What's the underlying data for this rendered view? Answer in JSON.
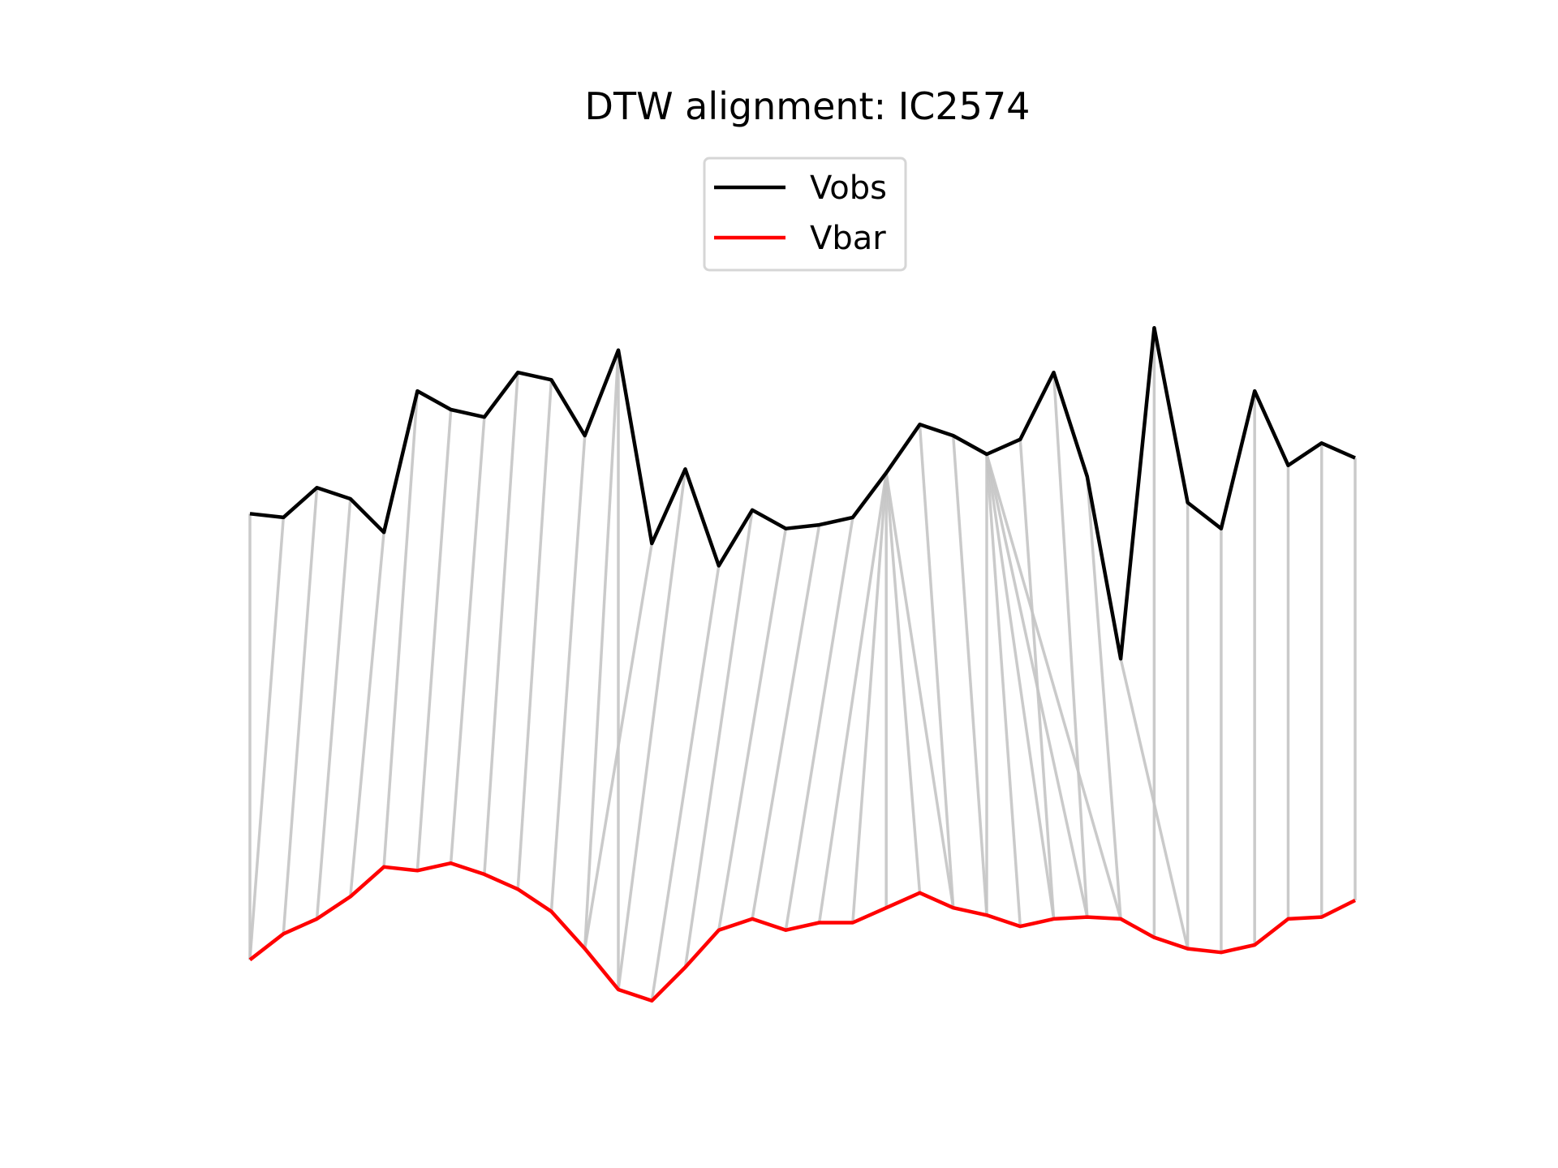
{
  "chart_data": {
    "type": "line",
    "title": "DTW alignment: IC2574",
    "xlabel": "",
    "ylabel": "",
    "grid": false,
    "axes_visible": false,
    "legend": {
      "placement": "upper-center"
    },
    "x": [
      0,
      1,
      2,
      3,
      4,
      5,
      6,
      7,
      8,
      9,
      10,
      11,
      12,
      13,
      14,
      15,
      16,
      17,
      18,
      19,
      20,
      21,
      22,
      23,
      24,
      25,
      26,
      27,
      28,
      29,
      30,
      31,
      32,
      33
    ],
    "ylim": [
      -1.1,
      1.3
    ],
    "series": [
      {
        "name": "Vobs",
        "color": "#000000",
        "values": [
          0.3,
          0.29,
          0.37,
          0.34,
          0.25,
          0.63,
          0.58,
          0.56,
          0.68,
          0.66,
          0.51,
          0.74,
          0.22,
          0.42,
          0.16,
          0.31,
          0.26,
          0.27,
          0.29,
          0.41,
          0.54,
          0.51,
          0.46,
          0.5,
          0.68,
          0.4,
          -0.09,
          0.8,
          0.33,
          0.26,
          0.63,
          0.43,
          0.49,
          0.45
        ]
      },
      {
        "name": "Vbar",
        "color": "#ff0000",
        "values": [
          -0.9,
          -0.83,
          -0.79,
          -0.73,
          -0.65,
          -0.66,
          -0.64,
          -0.67,
          -0.71,
          -0.77,
          -0.87,
          -0.98,
          -1.01,
          -0.92,
          -0.82,
          -0.79,
          -0.82,
          -0.8,
          -0.8,
          -0.76,
          -0.72,
          -0.76,
          -0.78,
          -0.81,
          -0.79,
          -0.785,
          -0.79,
          -0.84,
          -0.87,
          -0.88,
          -0.86,
          -0.79,
          -0.785,
          -0.74
        ]
      }
    ],
    "alignment_color": "#c4c4c4",
    "alignment_pairs": [
      [
        0,
        0
      ],
      [
        1,
        0
      ],
      [
        2,
        1
      ],
      [
        3,
        2
      ],
      [
        4,
        3
      ],
      [
        5,
        4
      ],
      [
        6,
        5
      ],
      [
        7,
        6
      ],
      [
        8,
        7
      ],
      [
        9,
        8
      ],
      [
        10,
        9
      ],
      [
        11,
        10
      ],
      [
        11,
        11
      ],
      [
        12,
        10
      ],
      [
        13,
        11
      ],
      [
        14,
        12
      ],
      [
        15,
        13
      ],
      [
        16,
        14
      ],
      [
        17,
        15
      ],
      [
        18,
        16
      ],
      [
        19,
        17
      ],
      [
        19,
        18
      ],
      [
        19,
        19
      ],
      [
        19,
        20
      ],
      [
        19,
        21
      ],
      [
        20,
        21
      ],
      [
        21,
        22
      ],
      [
        22,
        23
      ],
      [
        22,
        22
      ],
      [
        22,
        24
      ],
      [
        22,
        25
      ],
      [
        22,
        26
      ],
      [
        23,
        24
      ],
      [
        24,
        25
      ],
      [
        25,
        26
      ],
      [
        26,
        28
      ],
      [
        27,
        27
      ],
      [
        28,
        28
      ],
      [
        29,
        29
      ],
      [
        30,
        30
      ],
      [
        31,
        31
      ],
      [
        32,
        32
      ],
      [
        33,
        33
      ]
    ]
  }
}
